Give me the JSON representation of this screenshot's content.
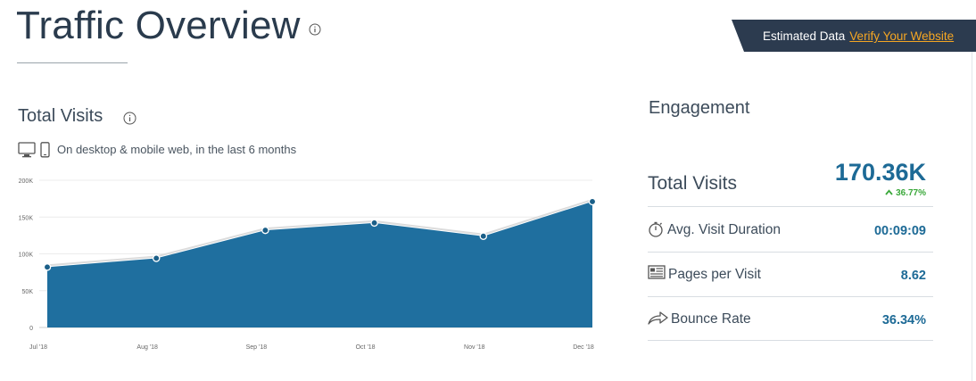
{
  "header": {
    "title": "Traffic Overview",
    "estimated_label": "Estimated Data",
    "verify_link": "Verify Your Website"
  },
  "visits": {
    "section_title": "Total Visits",
    "subtitle": "On desktop & mobile web, in the last 6 months"
  },
  "chart_data": {
    "type": "area",
    "categories": [
      "Jul '18",
      "Aug '18",
      "Sep '18",
      "Oct '18",
      "Nov '18",
      "Dec '18"
    ],
    "series": [
      {
        "values": [
          82000,
          94000,
          132000,
          142000,
          124000,
          171000
        ]
      }
    ],
    "y_ticks": [
      "0",
      "50K",
      "100K",
      "150K",
      "200K"
    ],
    "ylim": [
      0,
      200000
    ],
    "grid": true,
    "colors": {
      "fill": "#1f6f9f",
      "line": "#dcdcdc",
      "point": "#1b5f88"
    }
  },
  "engagement": {
    "title": "Engagement",
    "total_visits_label": "Total Visits",
    "total_visits_value": "170.36K",
    "total_visits_change": "36.77%",
    "metrics": [
      {
        "icon": "stopwatch-icon",
        "label": "Avg. Visit Duration",
        "value": "00:09:09"
      },
      {
        "icon": "pages-icon",
        "label": "Pages per Visit",
        "value": "8.62"
      },
      {
        "icon": "bounce-arrow-icon",
        "label": "Bounce Rate",
        "value": "36.34%"
      }
    ]
  },
  "colors": {
    "accent": "#1d6a96",
    "banner_bg": "#2c3b4f",
    "link": "#f5a623",
    "positive": "#3aa83a"
  }
}
